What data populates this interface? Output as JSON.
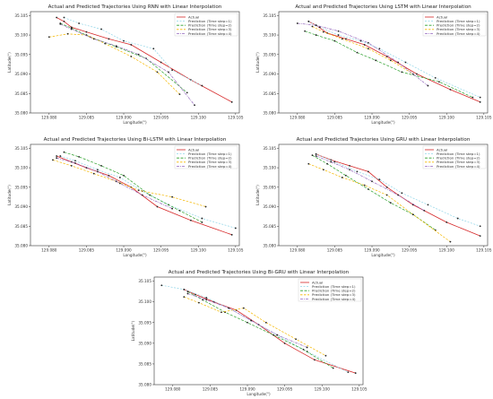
{
  "chart_data": [
    {
      "type": "line",
      "title": "Actual and Predicted Trajectories Using RNN with Linear Interpolation",
      "xlabel": "Longitude(°)",
      "ylabel": "Latitude(°)",
      "xlim": [
        129.0775,
        129.1055
      ],
      "ylim": [
        35.08,
        35.106
      ],
      "xticks": [
        "129.080",
        "129.085",
        "129.090",
        "129.095",
        "129.100",
        "129.105"
      ],
      "yticks": [
        "35.080",
        "35.085",
        "35.090",
        "35.095",
        "35.100",
        "35.105"
      ],
      "grid": false,
      "legend_position": "top-right",
      "colors": {
        "actual": "#d62728",
        "ts1": "#8fd5e8",
        "ts2": "#2ca02c",
        "ts3": "#f5b800",
        "ts4": "#9467bd"
      },
      "series": [
        {
          "name": "Actual",
          "x": [
            129.081,
            129.082,
            129.083,
            129.085,
            129.088,
            129.091,
            129.095,
            129.099,
            129.1045
          ],
          "y": [
            35.1045,
            35.1035,
            35.102,
            35.1008,
            35.099,
            35.0975,
            35.093,
            35.0885,
            35.0828
          ]
        },
        {
          "name": "Prediction (Time step=1)",
          "x": [
            129.082,
            129.084,
            129.087,
            129.09,
            129.094,
            129.0965,
            129.1005
          ],
          "y": [
            35.1045,
            35.103,
            35.1015,
            35.0985,
            35.0965,
            35.091,
            35.087
          ]
        },
        {
          "name": "Prediction (Time step=2)",
          "x": [
            129.0815,
            129.083,
            129.0855,
            129.089,
            129.093,
            129.0985
          ],
          "y": [
            35.103,
            35.1018,
            35.0995,
            35.097,
            35.094,
            35.0852
          ]
        },
        {
          "name": "Prediction (Time step=3)",
          "x": [
            129.08,
            129.0825,
            129.085,
            129.0875,
            129.091,
            129.0945,
            129.0975
          ],
          "y": [
            35.0995,
            35.1003,
            35.1,
            35.0978,
            35.0945,
            35.0905,
            35.0848
          ]
        },
        {
          "name": "Prediction (Time step=4)",
          "x": [
            129.0815,
            129.083,
            129.086,
            129.089,
            129.092,
            129.096,
            129.0995
          ],
          "y": [
            35.1028,
            35.1015,
            35.099,
            35.0972,
            35.095,
            35.0905,
            35.082
          ]
        }
      ]
    },
    {
      "type": "line",
      "title": "Actual and Predicted Trajectories Using LSTM with Linear Interpolation",
      "xlabel": "Longitude(°)",
      "ylabel": "Latitude(°)",
      "xlim": [
        129.0775,
        129.1055
      ],
      "ylim": [
        35.08,
        35.106
      ],
      "xticks": [
        "129.080",
        "129.085",
        "129.090",
        "129.095",
        "129.100",
        "129.105"
      ],
      "yticks": [
        "35.080",
        "35.085",
        "35.090",
        "35.095",
        "35.100",
        "35.105"
      ],
      "grid": false,
      "legend_position": "top-right",
      "colors": {
        "actual": "#d62728",
        "ts1": "#8fd5e8",
        "ts2": "#2ca02c",
        "ts3": "#f5b800",
        "ts4": "#9467bd"
      },
      "series": [
        {
          "name": "Actual",
          "x": [
            129.0815,
            129.0825,
            129.084,
            129.0865,
            129.089,
            129.092,
            129.096,
            129.1005,
            129.1045
          ],
          "y": [
            35.1035,
            35.1025,
            35.1005,
            35.099,
            35.0975,
            35.0945,
            35.09,
            35.086,
            35.0828
          ]
        },
        {
          "name": "Prediction (Time step=1)",
          "x": [
            129.0815,
            129.083,
            129.0855,
            129.0885,
            129.091,
            129.0945,
            129.0985,
            129.1045
          ],
          "y": [
            35.1035,
            35.102,
            35.1,
            35.0985,
            35.0965,
            35.093,
            35.089,
            35.084
          ]
        },
        {
          "name": "Prediction (Time step=2)",
          "x": [
            129.081,
            129.0825,
            129.085,
            129.088,
            129.0905,
            129.094,
            129.099,
            129.1035
          ],
          "y": [
            35.101,
            35.1,
            35.0985,
            35.0955,
            35.0935,
            35.0905,
            35.088,
            35.084
          ]
        },
        {
          "name": "Prediction (Time step=3)",
          "x": [
            129.082,
            129.0835,
            129.086,
            129.0895,
            129.0925,
            129.0955
          ],
          "y": [
            35.1022,
            35.1008,
            35.099,
            35.0965,
            35.0935,
            35.09
          ]
        },
        {
          "name": "Prediction (Time step=4)",
          "x": [
            129.08,
            129.0825,
            129.0855,
            129.0895,
            129.0935,
            129.0975
          ],
          "y": [
            35.103,
            35.1025,
            35.101,
            35.098,
            35.093,
            35.087
          ]
        }
      ]
    },
    {
      "type": "line",
      "title": "Actual and Predicted Trajectories Using Bi-LSTM with Linear Interpolation",
      "xlabel": "Longitude(°)",
      "ylabel": "Latitude(°)",
      "xlim": [
        129.0775,
        129.1055
      ],
      "ylim": [
        35.08,
        35.106
      ],
      "xticks": [
        "129.080",
        "129.085",
        "129.090",
        "129.095",
        "129.100",
        "129.105"
      ],
      "yticks": [
        "35.080",
        "35.085",
        "35.090",
        "35.095",
        "35.100",
        "35.105"
      ],
      "grid": false,
      "legend_position": "top-right",
      "colors": {
        "actual": "#d62728",
        "ts1": "#8fd5e8",
        "ts2": "#2ca02c",
        "ts3": "#f5b800",
        "ts4": "#9467bd"
      },
      "series": [
        {
          "name": "Actual",
          "x": [
            129.081,
            129.083,
            129.085,
            129.088,
            129.091,
            129.0945,
            129.099,
            129.1045
          ],
          "y": [
            35.103,
            35.1015,
            35.1,
            35.098,
            35.095,
            35.09,
            35.0865,
            35.0828
          ]
        },
        {
          "name": "Prediction (Time step=1)",
          "x": [
            129.0815,
            129.0835,
            129.0865,
            129.0895,
            129.0925,
            129.096,
            129.1005,
            129.105
          ],
          "y": [
            35.103,
            35.1018,
            35.0995,
            35.0975,
            35.094,
            35.0905,
            35.087,
            35.0845
          ]
        },
        {
          "name": "Prediction (Time step=2)",
          "x": [
            129.082,
            129.084,
            129.087,
            129.09,
            129.0935,
            129.0975,
            129.1005
          ],
          "y": [
            35.104,
            35.1028,
            35.1005,
            35.098,
            35.093,
            35.089,
            35.086
          ]
        },
        {
          "name": "Prediction (Time step=3)",
          "x": [
            129.0805,
            129.083,
            129.086,
            129.089,
            129.092,
            129.0965,
            129.101
          ],
          "y": [
            35.102,
            35.1005,
            35.0985,
            35.0965,
            35.0942,
            35.0925,
            35.09
          ]
        },
        {
          "name": "Prediction (Time step=4)",
          "x": [
            129.081,
            129.0835,
            129.0865,
            129.0895,
            129.0925,
            129.0965
          ],
          "y": [
            35.1025,
            35.1012,
            35.099,
            35.096,
            35.093,
            35.0895
          ]
        }
      ]
    },
    {
      "type": "line",
      "title": "Actual and Predicted Trajectories Using GRU with Linear Interpolation",
      "xlabel": "Longitude(°)",
      "ylabel": "Latitude(°)",
      "xlim": [
        129.0775,
        129.1055
      ],
      "ylim": [
        35.08,
        35.106
      ],
      "xticks": [
        "129.080",
        "129.085",
        "129.090",
        "129.095",
        "129.100",
        "129.105"
      ],
      "yticks": [
        "35.080",
        "35.085",
        "35.090",
        "35.095",
        "35.100",
        "35.105"
      ],
      "grid": false,
      "legend_position": "top-right",
      "colors": {
        "actual": "#d62728",
        "ts1": "#8fd5e8",
        "ts2": "#2ca02c",
        "ts3": "#f5b800",
        "ts4": "#9467bd"
      },
      "series": [
        {
          "name": "Actual",
          "x": [
            129.0825,
            129.0845,
            129.087,
            129.0895,
            129.092,
            129.0955,
            129.1,
            129.1045
          ],
          "y": [
            35.1035,
            35.102,
            35.1005,
            35.099,
            35.095,
            35.0905,
            35.086,
            35.0825
          ]
        },
        {
          "name": "Prediction (Time step=1)",
          "x": [
            129.0825,
            129.085,
            129.088,
            129.091,
            129.094,
            129.0975,
            129.1015,
            129.1045
          ],
          "y": [
            35.1035,
            35.1015,
            35.099,
            35.097,
            35.0935,
            35.0905,
            35.087,
            35.085
          ]
        },
        {
          "name": "Prediction (Time step=2)",
          "x": [
            129.082,
            129.084,
            129.0865,
            129.0895,
            129.0925,
            129.0955,
            129.0985
          ],
          "y": [
            35.1032,
            35.101,
            35.098,
            35.0945,
            35.091,
            35.088,
            35.084
          ]
        },
        {
          "name": "Prediction (Time step=3)",
          "x": [
            129.0815,
            129.0835,
            129.086,
            129.089,
            129.092,
            129.0955,
            129.1005
          ],
          "y": [
            35.101,
            35.0995,
            35.0975,
            35.0955,
            35.093,
            35.088,
            35.081
          ]
        },
        {
          "name": "Prediction (Time step=4)",
          "x": [
            129.0825,
            129.0845,
            129.087,
            129.09,
            129.0935,
            129.097
          ],
          "y": [
            35.103,
            35.1015,
            35.0995,
            35.0965,
            35.093,
            35.089
          ]
        }
      ]
    },
    {
      "type": "line",
      "title": "Actual and Predicted Trajectories Using Bi-GRU with Linear Interpolation",
      "xlabel": "Longitude(°)",
      "ylabel": "Latitude(°)",
      "xlim": [
        129.0775,
        129.1055
      ],
      "ylim": [
        35.08,
        35.106
      ],
      "xticks": [
        "129.080",
        "129.085",
        "129.090",
        "129.095",
        "129.100",
        "129.105"
      ],
      "yticks": [
        "35.080",
        "35.085",
        "35.090",
        "35.095",
        "35.100",
        "35.105"
      ],
      "grid": false,
      "legend_position": "top-right",
      "colors": {
        "actual": "#d62728",
        "ts1": "#8fd5e8",
        "ts2": "#2ca02c",
        "ts3": "#f5b800",
        "ts4": "#9467bd"
      },
      "series": [
        {
          "name": "Actual",
          "x": [
            129.0815,
            129.083,
            129.0855,
            129.0885,
            129.0915,
            129.095,
            129.099,
            129.1045
          ],
          "y": [
            35.103,
            35.1018,
            35.1,
            35.098,
            35.0945,
            35.09,
            35.086,
            35.0828
          ]
        },
        {
          "name": "Prediction (Time step=1)",
          "x": [
            129.0785,
            129.0815,
            129.0845,
            129.0875,
            129.0905,
            129.094,
            129.098,
            129.1035
          ],
          "y": [
            35.104,
            35.103,
            35.101,
            35.0985,
            35.0955,
            35.092,
            35.088,
            35.083
          ]
        },
        {
          "name": "Prediction (Time step=2)",
          "x": [
            129.082,
            129.084,
            129.087,
            129.09,
            129.0935,
            129.0975,
            129.1015
          ],
          "y": [
            35.1025,
            35.1005,
            35.0975,
            35.095,
            35.092,
            35.0885,
            35.084
          ]
        },
        {
          "name": "Prediction (Time step=3)",
          "x": [
            129.0815,
            129.0835,
            129.0865,
            129.0895,
            129.0925,
            129.0965,
            129.1005
          ],
          "y": [
            35.1012,
            35.0998,
            35.0975,
            35.0985,
            35.095,
            35.091,
            35.087
          ]
        },
        {
          "name": "Prediction (Time step=4)",
          "x": [
            129.082,
            129.0845,
            129.0875,
            129.0905,
            129.094,
            129.098
          ],
          "y": [
            35.102,
            35.1005,
            35.0985,
            35.0955,
            35.092,
            35.089
          ]
        }
      ]
    }
  ]
}
